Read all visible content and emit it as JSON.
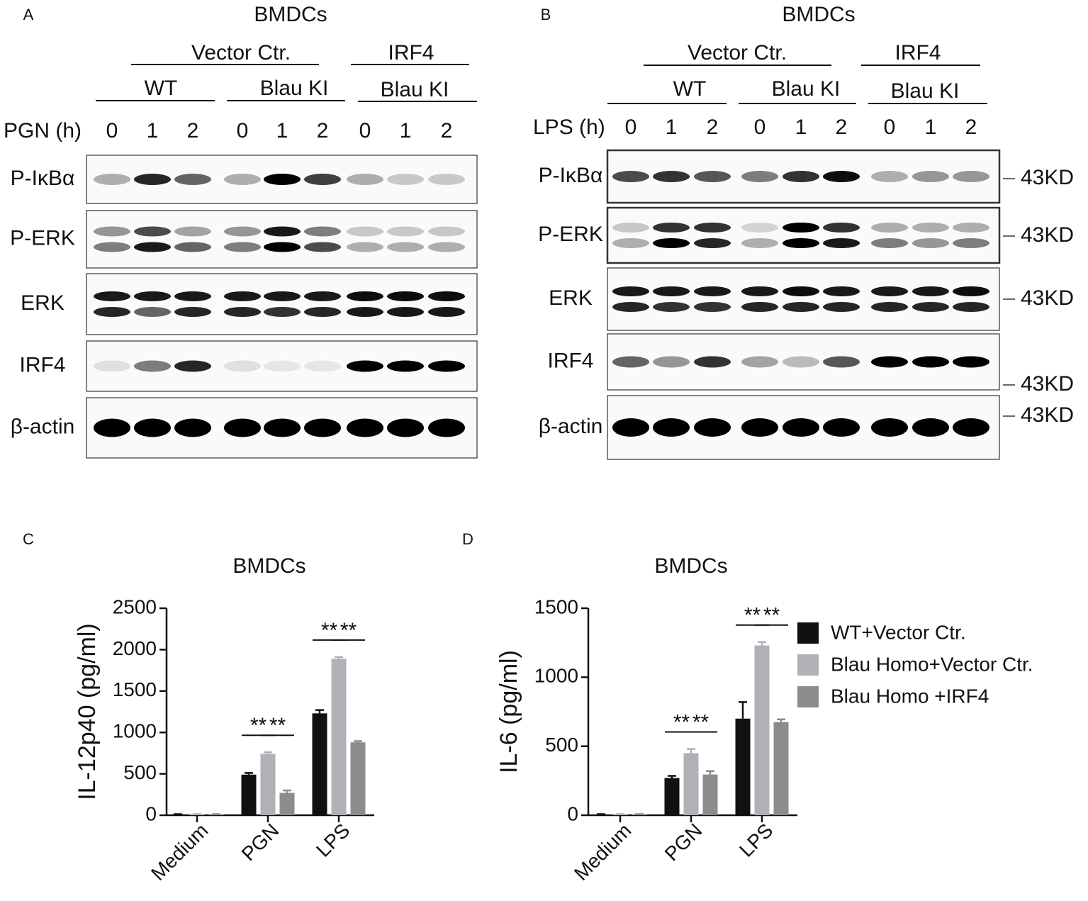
{
  "panel_a": {
    "letter": "A",
    "title": "BMDCs",
    "groups": [
      "Vector Ctr.",
      "IRF4"
    ],
    "subgroups": [
      "WT",
      "Blau KI",
      "Blau KI"
    ],
    "time_label": "PGN (h)",
    "times": [
      "0",
      "1",
      "2",
      "0",
      "1",
      "2",
      "0",
      "1",
      "2"
    ],
    "rows": [
      "P-IκBα",
      "P-ERK",
      "ERK",
      "IRF4",
      "β-actin"
    ]
  },
  "panel_b": {
    "letter": "B",
    "title": "BMDCs",
    "groups": [
      "Vector Ctr.",
      "IRF4"
    ],
    "subgroups": [
      "WT",
      "Blau KI",
      "Blau KI"
    ],
    "time_label": "LPS (h)",
    "times": [
      "0",
      "1",
      "2",
      "0",
      "1",
      "2",
      "0",
      "1",
      "2"
    ],
    "rows": [
      "P-IκBα",
      "P-ERK",
      "ERK",
      "IRF4",
      "β-actin"
    ],
    "markers": [
      "43KD",
      "43KD",
      "43KD",
      "43KD",
      "43KD"
    ]
  },
  "chart_data": [
    {
      "type": "bar",
      "letter": "C",
      "title": "BMDCs",
      "y_label": "IL-12p40 (pg/ml)",
      "categories": [
        "Medium",
        "PGN",
        "LPS"
      ],
      "series": [
        {
          "color": "#111111",
          "values": [
            10,
            490,
            1230
          ],
          "errors": [
            3,
            20,
            40
          ]
        },
        {
          "color": "#b0b0b6",
          "values": [
            10,
            740,
            1890
          ],
          "errors": [
            3,
            20,
            20
          ]
        },
        {
          "color": "#8c8c8c",
          "values": [
            10,
            270,
            880
          ],
          "errors": [
            3,
            30,
            15
          ]
        }
      ],
      "ylim": [
        0,
        2500
      ],
      "yticks": [
        0,
        500,
        1000,
        1500,
        2000,
        2500
      ],
      "annotations": [
        "**",
        "**",
        "**",
        "**"
      ]
    },
    {
      "type": "bar",
      "letter": "D",
      "title": "BMDCs",
      "y_label": "IL-6 (pg/ml)",
      "categories": [
        "Medium",
        "PGN",
        "LPS"
      ],
      "series": [
        {
          "name": "WT+Vector Ctr.",
          "color": "#111111",
          "values": [
            5,
            270,
            700
          ],
          "errors": [
            3,
            15,
            120
          ]
        },
        {
          "name": "Blau Homo+Vector Ctr.",
          "color": "#b0b0b6",
          "values": [
            5,
            450,
            1230
          ],
          "errors": [
            3,
            30,
            25
          ]
        },
        {
          "name": "Blau Homo +IRF4",
          "color": "#8c8c8c",
          "values": [
            5,
            295,
            675
          ],
          "errors": [
            3,
            25,
            20
          ]
        }
      ],
      "ylim": [
        0,
        1500
      ],
      "yticks": [
        0,
        500,
        1000,
        1500
      ],
      "legend": "right",
      "annotations": [
        "**",
        "**",
        "**",
        "**"
      ]
    }
  ]
}
